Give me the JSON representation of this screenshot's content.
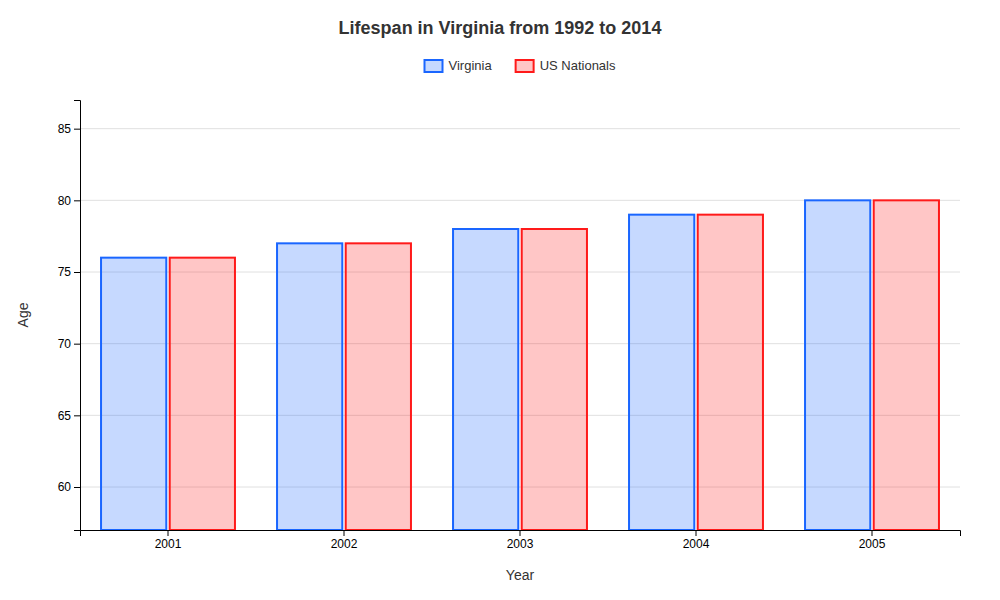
{
  "chart_data": {
    "type": "bar",
    "title": "Lifespan in Virginia from 1992 to 2014",
    "xlabel": "Year",
    "ylabel": "Age",
    "categories": [
      "2001",
      "2002",
      "2003",
      "2004",
      "2005"
    ],
    "series": [
      {
        "name": "Virginia",
        "color": "#1a66ff",
        "values": [
          76,
          77,
          78,
          79,
          80
        ]
      },
      {
        "name": "US Nationals",
        "color": "#ff1a1a",
        "values": [
          76,
          77,
          78,
          79,
          80
        ]
      }
    ],
    "ylim": [
      57,
      87
    ],
    "yticks": [
      60,
      65,
      70,
      75,
      80,
      85
    ],
    "grid": true,
    "legend": "top"
  }
}
